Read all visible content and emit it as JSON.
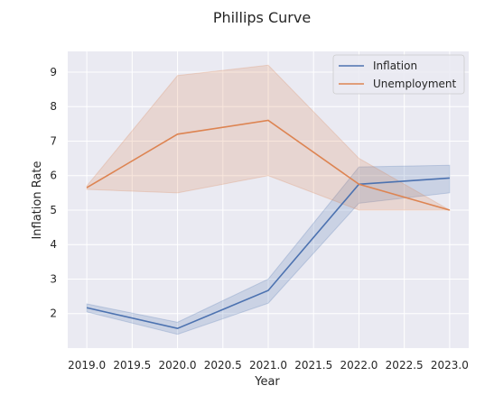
{
  "chart_data": {
    "type": "line",
    "title": "Phillips Curve",
    "xlabel": "Year",
    "ylabel": "Inflation Rate",
    "xlim": [
      2018.79,
      2023.21
    ],
    "ylim": [
      1.0,
      9.6
    ],
    "xticks": [
      2019.0,
      2019.5,
      2020.0,
      2020.5,
      2021.0,
      2021.5,
      2022.0,
      2022.5,
      2023.0
    ],
    "xtick_labels": [
      "2019.0",
      "2019.5",
      "2020.0",
      "2020.5",
      "2021.0",
      "2021.5",
      "2022.0",
      "2022.5",
      "2023.0"
    ],
    "yticks": [
      2,
      3,
      4,
      5,
      6,
      7,
      8,
      9
    ],
    "ytick_labels": [
      "2",
      "3",
      "4",
      "5",
      "6",
      "7",
      "8",
      "9"
    ],
    "grid": true,
    "legend_position": "top-right",
    "series": [
      {
        "name": "Inflation",
        "color": "#4c72b0",
        "x": [
          2019,
          2020,
          2021,
          2022,
          2023
        ],
        "y": [
          2.17,
          1.57,
          2.67,
          5.75,
          5.93
        ],
        "ci_low": [
          2.05,
          1.4,
          2.3,
          5.2,
          5.5
        ],
        "ci_high": [
          2.28,
          1.75,
          3.0,
          6.25,
          6.3
        ]
      },
      {
        "name": "Unemployment",
        "color": "#dd8452",
        "x": [
          2019,
          2020,
          2021,
          2022,
          2023
        ],
        "y": [
          5.65,
          7.2,
          7.6,
          5.75,
          5.0
        ],
        "ci_low": [
          5.6,
          5.5,
          6.0,
          5.0,
          5.0
        ],
        "ci_high": [
          5.7,
          8.9,
          9.2,
          6.5,
          5.0
        ]
      }
    ]
  }
}
